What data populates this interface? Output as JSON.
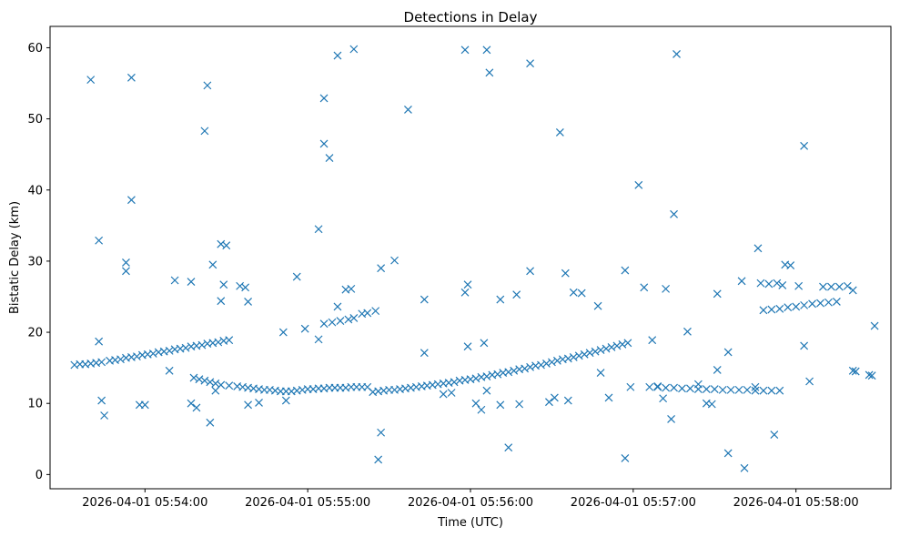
{
  "chart_data": {
    "type": "scatter",
    "title": "Detections in Delay",
    "xlabel": "Time (UTC)",
    "ylabel": "Bistatic Delay (km)",
    "x_ticks": [
      "2026-04-01 05:54:00",
      "2026-04-01 05:55:00",
      "2026-04-01 05:56:00",
      "2026-04-01 05:57:00",
      "2026-04-01 05:58:00"
    ],
    "y_ticks": [
      0,
      10,
      20,
      30,
      40,
      50,
      60
    ],
    "xlim": [
      "2026-04-01 05:53:25",
      "2026-04-01 05:58:35"
    ],
    "ylim": [
      -2,
      63
    ],
    "grid": false,
    "marker": "x",
    "color": "#1f77b4",
    "points": [
      [
        "2026-04-01 05:53:34",
        15.4
      ],
      [
        "2026-04-01 05:53:36",
        15.5
      ],
      [
        "2026-04-01 05:53:38",
        15.5
      ],
      [
        "2026-04-01 05:53:40",
        15.6
      ],
      [
        "2026-04-01 05:53:42",
        15.7
      ],
      [
        "2026-04-01 05:53:44",
        15.8
      ],
      [
        "2026-04-01 05:53:47",
        16.0
      ],
      [
        "2026-04-01 05:53:49",
        16.1
      ],
      [
        "2026-04-01 05:53:51",
        16.2
      ],
      [
        "2026-04-01 05:53:53",
        16.4
      ],
      [
        "2026-04-01 05:53:55",
        16.5
      ],
      [
        "2026-04-01 05:53:57",
        16.6
      ],
      [
        "2026-04-01 05:53:59",
        16.8
      ],
      [
        "2026-04-01 05:54:01",
        16.9
      ],
      [
        "2026-04-01 05:54:03",
        17.0
      ],
      [
        "2026-04-01 05:54:05",
        17.2
      ],
      [
        "2026-04-01 05:54:07",
        17.3
      ],
      [
        "2026-04-01 05:54:09",
        17.4
      ],
      [
        "2026-04-01 05:54:11",
        17.6
      ],
      [
        "2026-04-01 05:54:13",
        17.7
      ],
      [
        "2026-04-01 05:54:15",
        17.8
      ],
      [
        "2026-04-01 05:54:17",
        18.0
      ],
      [
        "2026-04-01 05:54:19",
        18.1
      ],
      [
        "2026-04-01 05:54:21",
        18.2
      ],
      [
        "2026-04-01 05:54:23",
        18.4
      ],
      [
        "2026-04-01 05:54:25",
        18.5
      ],
      [
        "2026-04-01 05:54:27",
        18.6
      ],
      [
        "2026-04-01 05:54:29",
        18.8
      ],
      [
        "2026-04-01 05:54:31",
        18.9
      ],
      [
        "2026-04-01 05:54:18",
        13.6
      ],
      [
        "2026-04-01 05:54:20",
        13.4
      ],
      [
        "2026-04-01 05:54:22",
        13.2
      ],
      [
        "2026-04-01 05:54:24",
        13.0
      ],
      [
        "2026-04-01 05:54:26",
        12.8
      ],
      [
        "2026-04-01 05:54:28",
        12.6
      ],
      [
        "2026-04-01 05:54:31",
        12.5
      ],
      [
        "2026-04-01 05:54:34",
        12.4
      ],
      [
        "2026-04-01 05:54:36",
        12.3
      ],
      [
        "2026-04-01 05:54:38",
        12.2
      ],
      [
        "2026-04-01 05:54:40",
        12.1
      ],
      [
        "2026-04-01 05:54:42",
        12.0
      ],
      [
        "2026-04-01 05:54:44",
        11.9
      ],
      [
        "2026-04-01 05:54:46",
        11.9
      ],
      [
        "2026-04-01 05:54:48",
        11.8
      ],
      [
        "2026-04-01 05:54:50",
        11.7
      ],
      [
        "2026-04-01 05:54:52",
        11.7
      ],
      [
        "2026-04-01 05:54:54",
        11.7
      ],
      [
        "2026-04-01 05:54:56",
        11.8
      ],
      [
        "2026-04-01 05:54:58",
        11.9
      ],
      [
        "2026-04-01 05:55:00",
        12.0
      ],
      [
        "2026-04-01 05:55:02",
        12.0
      ],
      [
        "2026-04-01 05:55:04",
        12.1
      ],
      [
        "2026-04-01 05:55:06",
        12.1
      ],
      [
        "2026-04-01 05:55:08",
        12.2
      ],
      [
        "2026-04-01 05:55:10",
        12.2
      ],
      [
        "2026-04-01 05:55:12",
        12.2
      ],
      [
        "2026-04-01 05:55:14",
        12.2
      ],
      [
        "2026-04-01 05:55:16",
        12.3
      ],
      [
        "2026-04-01 05:55:18",
        12.3
      ],
      [
        "2026-04-01 05:55:20",
        12.3
      ],
      [
        "2026-04-01 05:55:22",
        12.3
      ],
      [
        "2026-04-01 05:55:24",
        11.6
      ],
      [
        "2026-04-01 05:55:26",
        11.7
      ],
      [
        "2026-04-01 05:55:28",
        11.8
      ],
      [
        "2026-04-01 05:55:30",
        11.9
      ],
      [
        "2026-04-01 05:55:32",
        11.9
      ],
      [
        "2026-04-01 05:55:34",
        12.0
      ],
      [
        "2026-04-01 05:55:36",
        12.1
      ],
      [
        "2026-04-01 05:55:38",
        12.2
      ],
      [
        "2026-04-01 05:55:40",
        12.3
      ],
      [
        "2026-04-01 05:55:42",
        12.4
      ],
      [
        "2026-04-01 05:55:44",
        12.5
      ],
      [
        "2026-04-01 05:55:46",
        12.6
      ],
      [
        "2026-04-01 05:55:48",
        12.7
      ],
      [
        "2026-04-01 05:55:50",
        12.8
      ],
      [
        "2026-04-01 05:55:52",
        12.9
      ],
      [
        "2026-04-01 05:55:54",
        13.0
      ],
      [
        "2026-04-01 05:55:56",
        13.2
      ],
      [
        "2026-04-01 05:55:58",
        13.3
      ],
      [
        "2026-04-01 05:56:00",
        13.4
      ],
      [
        "2026-04-01 05:56:02",
        13.5
      ],
      [
        "2026-04-01 05:56:04",
        13.7
      ],
      [
        "2026-04-01 05:56:06",
        13.8
      ],
      [
        "2026-04-01 05:56:08",
        14.0
      ],
      [
        "2026-04-01 05:56:10",
        14.1
      ],
      [
        "2026-04-01 05:56:12",
        14.3
      ],
      [
        "2026-04-01 05:56:14",
        14.4
      ],
      [
        "2026-04-01 05:56:16",
        14.6
      ],
      [
        "2026-04-01 05:56:18",
        14.8
      ],
      [
        "2026-04-01 05:56:20",
        14.9
      ],
      [
        "2026-04-01 05:56:22",
        15.1
      ],
      [
        "2026-04-01 05:56:24",
        15.3
      ],
      [
        "2026-04-01 05:56:26",
        15.4
      ],
      [
        "2026-04-01 05:56:28",
        15.6
      ],
      [
        "2026-04-01 05:56:30",
        15.8
      ],
      [
        "2026-04-01 05:56:32",
        16.0
      ],
      [
        "2026-04-01 05:56:34",
        16.2
      ],
      [
        "2026-04-01 05:56:36",
        16.3
      ],
      [
        "2026-04-01 05:56:38",
        16.5
      ],
      [
        "2026-04-01 05:56:40",
        16.7
      ],
      [
        "2026-04-01 05:56:42",
        16.9
      ],
      [
        "2026-04-01 05:56:44",
        17.1
      ],
      [
        "2026-04-01 05:56:46",
        17.3
      ],
      [
        "2026-04-01 05:56:48",
        17.5
      ],
      [
        "2026-04-01 05:56:50",
        17.7
      ],
      [
        "2026-04-01 05:56:52",
        17.9
      ],
      [
        "2026-04-01 05:56:54",
        18.1
      ],
      [
        "2026-04-01 05:56:56",
        18.3
      ],
      [
        "2026-04-01 05:56:58",
        18.5
      ],
      [
        "2026-04-01 05:57:06",
        12.3
      ],
      [
        "2026-04-01 05:57:09",
        12.3
      ],
      [
        "2026-04-01 05:57:12",
        12.2
      ],
      [
        "2026-04-01 05:57:15",
        12.2
      ],
      [
        "2026-04-01 05:57:18",
        12.1
      ],
      [
        "2026-04-01 05:57:21",
        12.1
      ],
      [
        "2026-04-01 05:57:24",
        12.0
      ],
      [
        "2026-04-01 05:57:27",
        12.0
      ],
      [
        "2026-04-01 05:57:30",
        12.0
      ],
      [
        "2026-04-01 05:57:33",
        11.9
      ],
      [
        "2026-04-01 05:57:36",
        11.9
      ],
      [
        "2026-04-01 05:57:39",
        11.9
      ],
      [
        "2026-04-01 05:57:42",
        11.9
      ],
      [
        "2026-04-01 05:57:45",
        11.8
      ],
      [
        "2026-04-01 05:57:48",
        11.8
      ],
      [
        "2026-04-01 05:57:51",
        11.8
      ],
      [
        "2026-04-01 05:57:54",
        11.8
      ],
      [
        "2026-04-01 05:57:48",
        23.1
      ],
      [
        "2026-04-01 05:57:51",
        23.2
      ],
      [
        "2026-04-01 05:57:54",
        23.3
      ],
      [
        "2026-04-01 05:57:57",
        23.5
      ],
      [
        "2026-04-01 05:58:00",
        23.6
      ],
      [
        "2026-04-01 05:58:03",
        23.8
      ],
      [
        "2026-04-01 05:58:06",
        24.0
      ],
      [
        "2026-04-01 05:58:09",
        24.1
      ],
      [
        "2026-04-01 05:58:12",
        24.2
      ],
      [
        "2026-04-01 05:58:15",
        24.3
      ],
      [
        "2026-04-01 05:58:10",
        26.4
      ],
      [
        "2026-04-01 05:58:13",
        26.4
      ],
      [
        "2026-04-01 05:58:16",
        26.4
      ],
      [
        "2026-04-01 05:58:19",
        26.5
      ],
      [
        "2026-04-01 05:53:40",
        55.5
      ],
      [
        "2026-04-01 05:53:43",
        18.7
      ],
      [
        "2026-04-01 05:53:43",
        32.9
      ],
      [
        "2026-04-01 05:53:44",
        10.4
      ],
      [
        "2026-04-01 05:53:45",
        8.3
      ],
      [
        "2026-04-01 05:53:53",
        29.8
      ],
      [
        "2026-04-01 05:53:53",
        28.6
      ],
      [
        "2026-04-01 05:53:55",
        55.8
      ],
      [
        "2026-04-01 05:53:55",
        38.6
      ],
      [
        "2026-04-01 05:53:58",
        9.8
      ],
      [
        "2026-04-01 05:54:00",
        9.8
      ],
      [
        "2026-04-01 05:54:09",
        14.6
      ],
      [
        "2026-04-01 05:54:11",
        27.3
      ],
      [
        "2026-04-01 05:54:17",
        10.0
      ],
      [
        "2026-04-01 05:54:19",
        9.4
      ],
      [
        "2026-04-01 05:54:17",
        27.1
      ],
      [
        "2026-04-01 05:54:22",
        48.3
      ],
      [
        "2026-04-01 05:54:23",
        54.7
      ],
      [
        "2026-04-01 05:54:24",
        7.3
      ],
      [
        "2026-04-01 05:54:25",
        29.5
      ],
      [
        "2026-04-01 05:54:26",
        11.8
      ],
      [
        "2026-04-01 05:54:28",
        24.4
      ],
      [
        "2026-04-01 05:54:28",
        32.4
      ],
      [
        "2026-04-01 05:54:29",
        26.7
      ],
      [
        "2026-04-01 05:54:30",
        32.2
      ],
      [
        "2026-04-01 05:54:35",
        26.5
      ],
      [
        "2026-04-01 05:54:38",
        24.3
      ],
      [
        "2026-04-01 05:54:37",
        26.3
      ],
      [
        "2026-04-01 05:54:38",
        9.8
      ],
      [
        "2026-04-01 05:54:42",
        10.1
      ],
      [
        "2026-04-01 05:54:51",
        20.0
      ],
      [
        "2026-04-01 05:54:52",
        10.4
      ],
      [
        "2026-04-01 05:54:56",
        27.8
      ],
      [
        "2026-04-01 05:54:59",
        20.5
      ],
      [
        "2026-04-01 05:55:04",
        34.5
      ],
      [
        "2026-04-01 05:55:04",
        19.0
      ],
      [
        "2026-04-01 05:55:06",
        52.9
      ],
      [
        "2026-04-01 05:55:06",
        46.5
      ],
      [
        "2026-04-01 05:55:08",
        44.5
      ],
      [
        "2026-04-01 05:55:11",
        58.9
      ],
      [
        "2026-04-01 05:55:11",
        23.6
      ],
      [
        "2026-04-01 05:55:14",
        26.0
      ],
      [
        "2026-04-01 05:55:16",
        26.1
      ],
      [
        "2026-04-01 05:55:17",
        59.8
      ],
      [
        "2026-04-01 05:55:06",
        21.2
      ],
      [
        "2026-04-01 05:55:09",
        21.4
      ],
      [
        "2026-04-01 05:55:12",
        21.6
      ],
      [
        "2026-04-01 05:55:15",
        21.8
      ],
      [
        "2026-04-01 05:55:17",
        22.0
      ],
      [
        "2026-04-01 05:55:20",
        22.6
      ],
      [
        "2026-04-01 05:55:22",
        22.7
      ],
      [
        "2026-04-01 05:55:25",
        23.0
      ],
      [
        "2026-04-01 05:55:26",
        2.1
      ],
      [
        "2026-04-01 05:55:27",
        5.9
      ],
      [
        "2026-04-01 05:55:27",
        29.0
      ],
      [
        "2026-04-01 05:55:32",
        30.1
      ],
      [
        "2026-04-01 05:55:37",
        51.3
      ],
      [
        "2026-04-01 05:55:43",
        24.6
      ],
      [
        "2026-04-01 05:55:43",
        17.1
      ],
      [
        "2026-04-01 05:55:50",
        11.3
      ],
      [
        "2026-04-01 05:55:53",
        11.5
      ],
      [
        "2026-04-01 05:55:58",
        59.7
      ],
      [
        "2026-04-01 05:55:58",
        25.6
      ],
      [
        "2026-04-01 05:55:59",
        26.7
      ],
      [
        "2026-04-01 05:55:59",
        18.0
      ],
      [
        "2026-04-01 05:56:02",
        10.0
      ],
      [
        "2026-04-01 05:56:04",
        9.1
      ],
      [
        "2026-04-01 05:56:06",
        59.7
      ],
      [
        "2026-04-01 05:56:07",
        56.5
      ],
      [
        "2026-04-01 05:56:05",
        18.5
      ],
      [
        "2026-04-01 05:56:06",
        11.8
      ],
      [
        "2026-04-01 05:56:11",
        24.6
      ],
      [
        "2026-04-01 05:56:11",
        9.8
      ],
      [
        "2026-04-01 05:56:14",
        3.8
      ],
      [
        "2026-04-01 05:56:17",
        25.3
      ],
      [
        "2026-04-01 05:56:18",
        9.9
      ],
      [
        "2026-04-01 05:56:22",
        57.8
      ],
      [
        "2026-04-01 05:56:22",
        28.6
      ],
      [
        "2026-04-01 05:56:29",
        10.2
      ],
      [
        "2026-04-01 05:56:31",
        10.8
      ],
      [
        "2026-04-01 05:56:33",
        48.1
      ],
      [
        "2026-04-01 05:56:36",
        10.4
      ],
      [
        "2026-04-01 05:56:35",
        28.3
      ],
      [
        "2026-04-01 05:56:38",
        25.6
      ],
      [
        "2026-04-01 05:56:41",
        25.5
      ],
      [
        "2026-04-01 05:56:47",
        23.7
      ],
      [
        "2026-04-01 05:56:48",
        14.3
      ],
      [
        "2026-04-01 05:56:51",
        10.8
      ],
      [
        "2026-04-01 05:56:57",
        2.3
      ],
      [
        "2026-04-01 05:56:57",
        28.7
      ],
      [
        "2026-04-01 05:56:59",
        12.3
      ],
      [
        "2026-04-01 05:57:02",
        40.7
      ],
      [
        "2026-04-01 05:57:04",
        26.3
      ],
      [
        "2026-04-01 05:57:07",
        18.9
      ],
      [
        "2026-04-01 05:57:09",
        12.4
      ],
      [
        "2026-04-01 05:57:11",
        10.7
      ],
      [
        "2026-04-01 05:57:12",
        26.1
      ],
      [
        "2026-04-01 05:57:14",
        7.8
      ],
      [
        "2026-04-01 05:57:16",
        59.1
      ],
      [
        "2026-04-01 05:57:15",
        36.6
      ],
      [
        "2026-04-01 05:57:20",
        20.1
      ],
      [
        "2026-04-01 05:57:24",
        12.7
      ],
      [
        "2026-04-01 05:57:27",
        10.0
      ],
      [
        "2026-04-01 05:57:29",
        9.9
      ],
      [
        "2026-04-01 05:57:31",
        25.4
      ],
      [
        "2026-04-01 05:57:31",
        14.7
      ],
      [
        "2026-04-01 05:57:35",
        17.2
      ],
      [
        "2026-04-01 05:57:35",
        3.0
      ],
      [
        "2026-04-01 05:57:40",
        27.2
      ],
      [
        "2026-04-01 05:57:41",
        0.9
      ],
      [
        "2026-04-01 05:57:45",
        12.3
      ],
      [
        "2026-04-01 05:57:46",
        31.8
      ],
      [
        "2026-04-01 05:57:47",
        26.9
      ],
      [
        "2026-04-01 05:57:50",
        26.8
      ],
      [
        "2026-04-01 05:57:52",
        5.6
      ],
      [
        "2026-04-01 05:57:53",
        26.9
      ],
      [
        "2026-04-01 05:57:55",
        26.6
      ],
      [
        "2026-04-01 05:57:56",
        29.5
      ],
      [
        "2026-04-01 05:57:58",
        29.4
      ],
      [
        "2026-04-01 05:58:01",
        26.5
      ],
      [
        "2026-04-01 05:58:03",
        18.1
      ],
      [
        "2026-04-01 05:58:03",
        46.2
      ],
      [
        "2026-04-01 05:58:05",
        13.1
      ],
      [
        "2026-04-01 05:58:21",
        25.9
      ],
      [
        "2026-04-01 05:58:21",
        14.6
      ],
      [
        "2026-04-01 05:58:22",
        14.5
      ],
      [
        "2026-04-01 05:58:27",
        14.0
      ],
      [
        "2026-04-01 05:58:28",
        13.9
      ],
      [
        "2026-04-01 05:58:29",
        20.9
      ]
    ]
  }
}
